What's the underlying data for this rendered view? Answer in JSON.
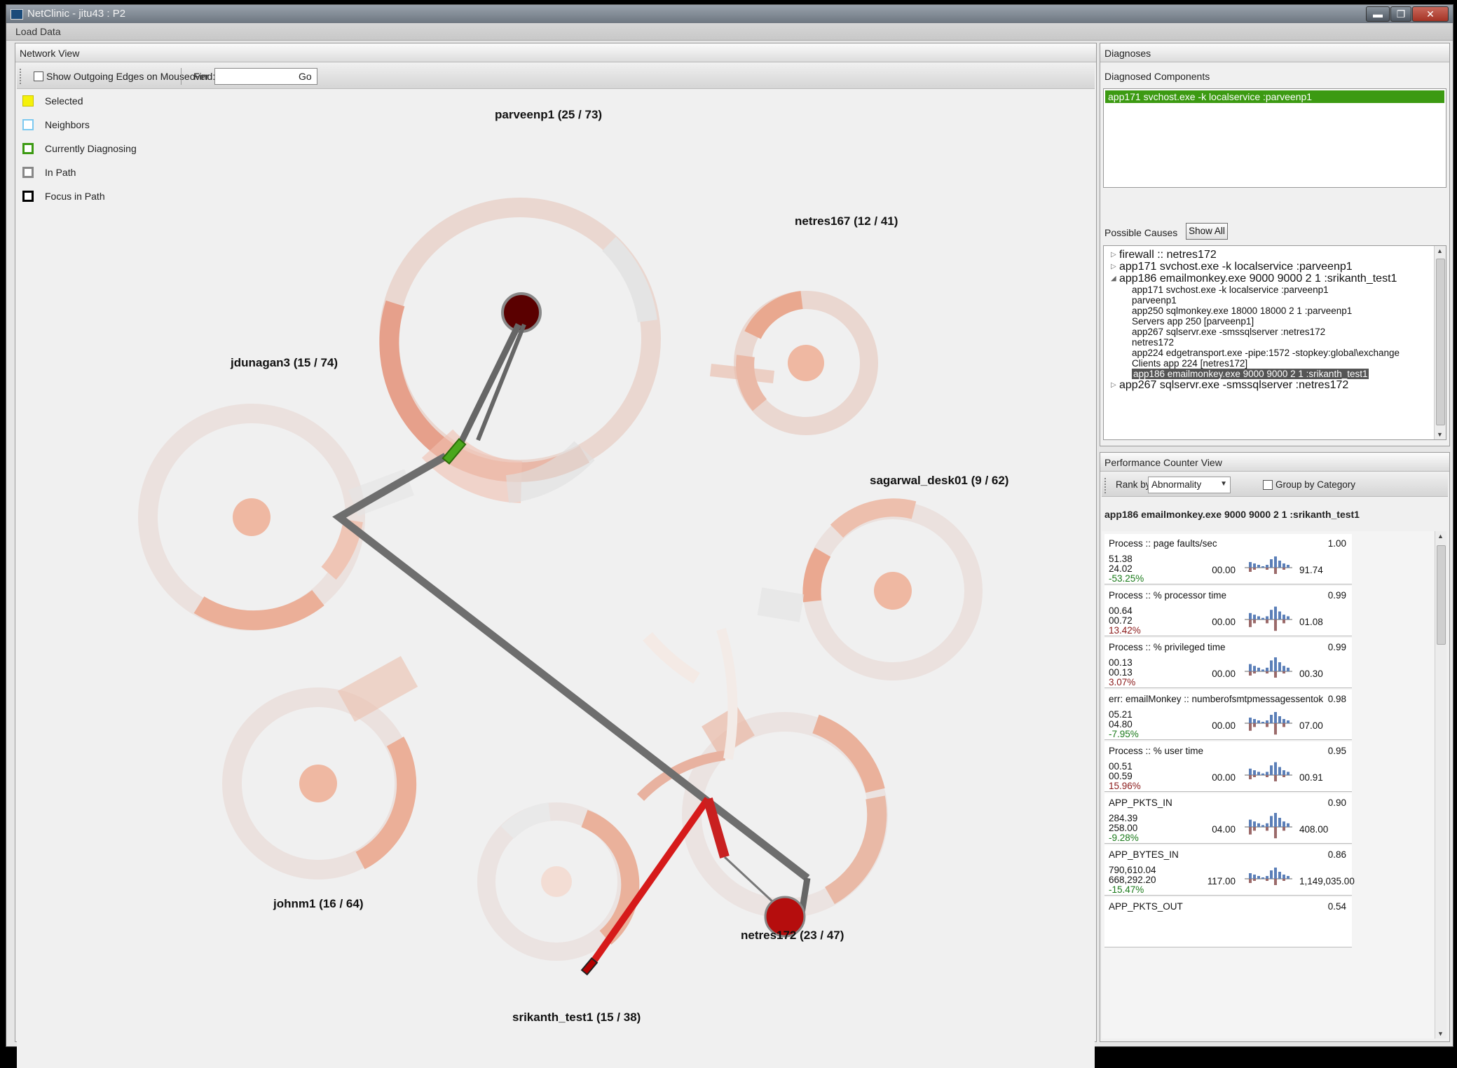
{
  "window": {
    "title": "NetClinic - jitu43 : P2",
    "min": "▬",
    "max": "❐",
    "close": "✕"
  },
  "menu": {
    "load_data": "Load Data"
  },
  "network_view": {
    "title": "Network View",
    "show_outgoing_label": "Show Outgoing Edges on Mouseover",
    "find_label": "Find:",
    "find_value": "",
    "go_label": "Go",
    "legend": [
      {
        "label": "Selected",
        "color": "#f5f10a"
      },
      {
        "label": "Neighbors",
        "color": "#7dc9f0"
      },
      {
        "label": "Currently Diagnosing",
        "color": "#3c9a12"
      },
      {
        "label": "In Path",
        "color": "#888888"
      },
      {
        "label": "Focus in Path",
        "color": "#000000"
      }
    ],
    "nodes": {
      "parveenp1": "parveenp1 (25 / 73)",
      "netres167": "netres167 (12 / 41)",
      "jdunagan3": "jdunagan3 (15 / 74)",
      "sagarwal": "sagarwal_desk01 (9 / 62)",
      "johnm1": "johnm1 (16 / 64)",
      "netres172": "netres172 (23 / 47)",
      "srikanth": "srikanth_test1 (15 / 38)"
    }
  },
  "diagnoses": {
    "title": "Diagnoses",
    "components_label": "Diagnosed Components",
    "selected_component": "app171 svchost.exe -k localservice :parveenp1",
    "possible_causes_label": "Possible Causes",
    "show_all": "Show All",
    "causes": [
      {
        "text": "firewall :: netres172",
        "level": 0,
        "arrow": "▷"
      },
      {
        "text": "app171 svchost.exe -k localservice :parveenp1",
        "level": 0,
        "arrow": "▷"
      },
      {
        "text": "app186 emailmonkey.exe  9000 9000 2 1 :srikanth_test1",
        "level": 0,
        "arrow": "◢"
      },
      {
        "text": "app171 svchost.exe -k localservice :parveenp1",
        "level": 1
      },
      {
        "text": "parveenp1",
        "level": 1
      },
      {
        "text": "app250 sqlmonkey.exe  18000 18000 2 1 :parveenp1",
        "level": 1
      },
      {
        "text": "Servers app 250 [parveenp1]",
        "level": 1
      },
      {
        "text": "app267 sqlservr.exe  -smssqlserver :netres172",
        "level": 1
      },
      {
        "text": "netres172",
        "level": 1
      },
      {
        "text": "app224 edgetransport.exe  -pipe:1572 -stopkey:global\\exchange",
        "level": 1
      },
      {
        "text": "Clients app 224 [netres172]",
        "level": 1
      },
      {
        "text": "app186 emailmonkey.exe  9000 9000 2 1 :srikanth_test1",
        "level": 1,
        "selected": true
      },
      {
        "text": "app267 sqlservr.exe  -smssqlserver :netres172",
        "level": 0,
        "arrow": "▷"
      }
    ]
  },
  "perf": {
    "title": "Performance Counter View",
    "rank_by_label": "Rank by",
    "rank_by_value": "Abnormality",
    "group_by_label": "Group by Category",
    "component": "app186 emailmonkey.exe  9000 9000 2 1 :srikanth_test1",
    "counters": [
      {
        "name": "Process :: page faults/sec",
        "score": "1.00",
        "v1": "51.38",
        "v2": "24.02",
        "pct": "-53.25%",
        "pct_color": "#1a7a1a",
        "min": "00.00",
        "max": "91.74"
      },
      {
        "name": "Process :: % processor time",
        "score": "0.99",
        "v1": "00.64",
        "v2": "00.72",
        "pct": "13.42%",
        "pct_color": "#8b1a1a",
        "min": "00.00",
        "max": "01.08"
      },
      {
        "name": "Process :: % privileged time",
        "score": "0.99",
        "v1": "00.13",
        "v2": "00.13",
        "pct": "3.07%",
        "pct_color": "#8b1a1a",
        "min": "00.00",
        "max": "00.30"
      },
      {
        "name": "err: emailMonkey :: numberofsmtpmessagessentok",
        "score": "0.98",
        "v1": "05.21",
        "v2": "04.80",
        "pct": "-7.95%",
        "pct_color": "#1a7a1a",
        "min": "00.00",
        "max": "07.00"
      },
      {
        "name": "Process :: % user time",
        "score": "0.95",
        "v1": "00.51",
        "v2": "00.59",
        "pct": "15.96%",
        "pct_color": "#8b1a1a",
        "min": "00.00",
        "max": "00.91"
      },
      {
        "name": "APP_PKTS_IN",
        "score": "0.90",
        "v1": "284.39",
        "v2": "258.00",
        "pct": "-9.28%",
        "pct_color": "#1a7a1a",
        "min": "04.00",
        "max": "408.00"
      },
      {
        "name": "APP_BYTES_IN",
        "score": "0.86",
        "v1": "790,610.04",
        "v2": "668,292.20",
        "pct": "-15.47%",
        "pct_color": "#1a7a1a",
        "min": "117.00",
        "max": "1,149,035.00"
      },
      {
        "name": "APP_PKTS_OUT",
        "score": "0.54",
        "v1": "",
        "v2": "",
        "pct": "",
        "pct_color": "#1a7a1a",
        "min": "",
        "max": ""
      }
    ]
  }
}
